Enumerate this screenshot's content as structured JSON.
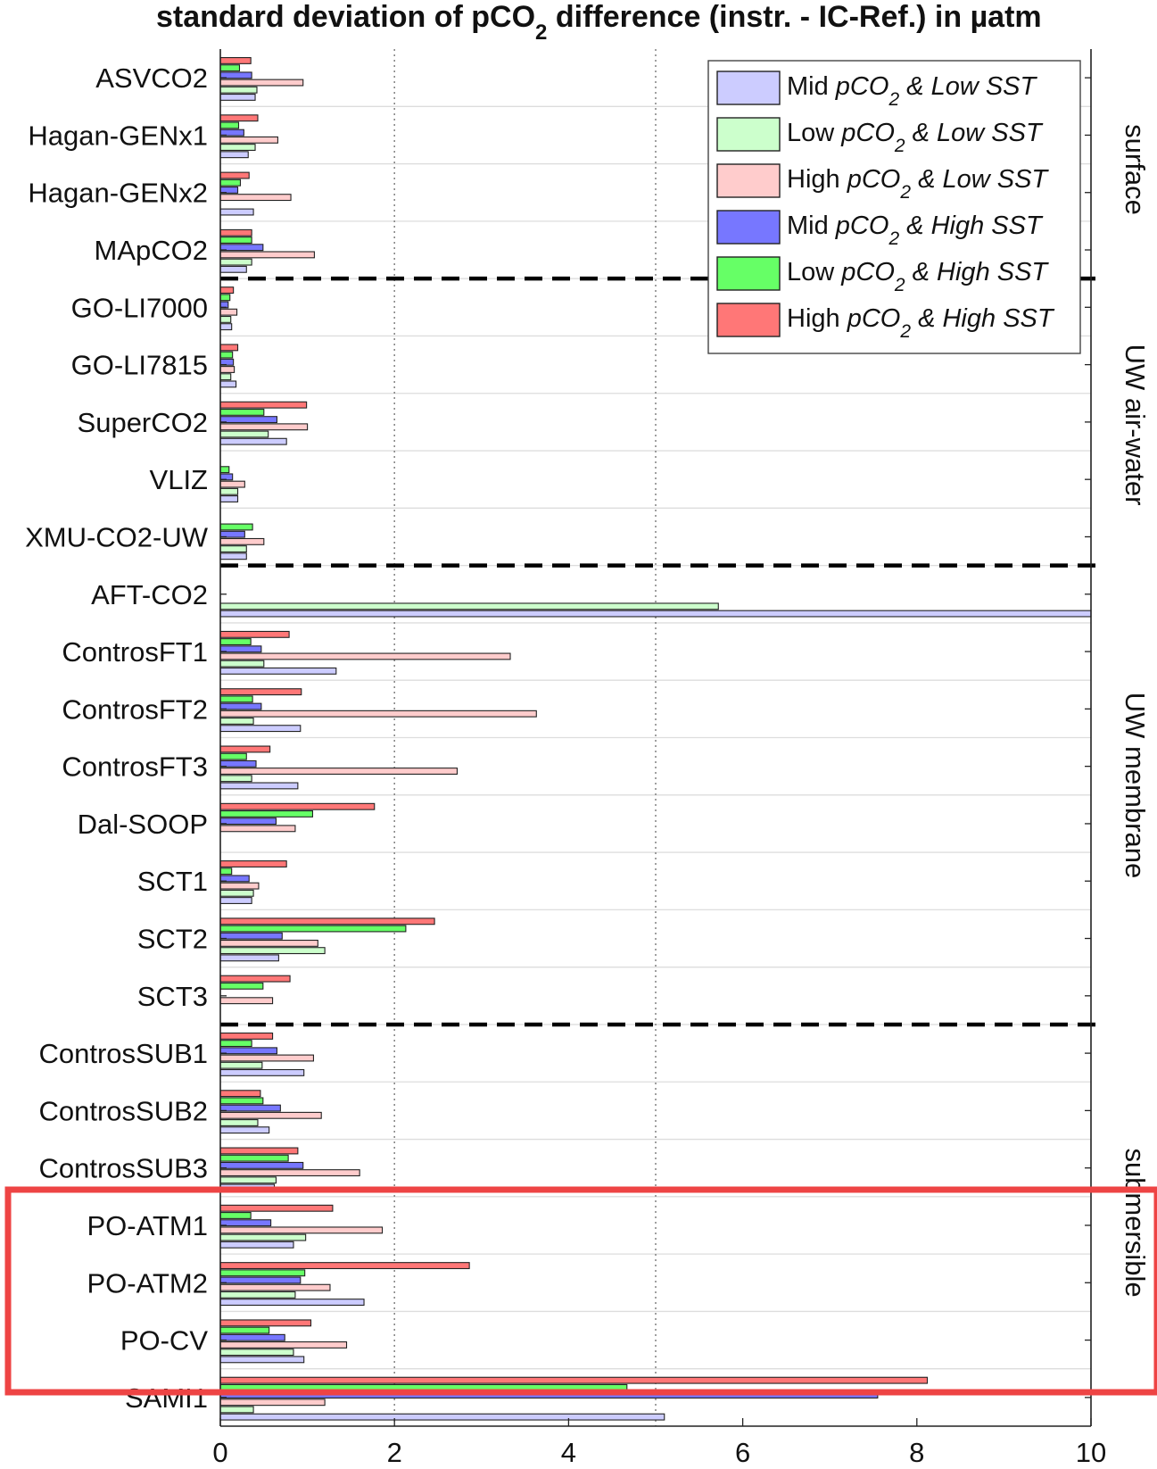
{
  "chart_data": {
    "type": "bar",
    "orientation": "horizontal",
    "title": "standard deviation of pCO₂ difference (instr. - IC-Ref.) in µatm",
    "title_parts": {
      "pre": "standard deviation of pCO",
      "sub": "2",
      "post": " difference (instr. - IC-Ref.) in µatm"
    },
    "xlim": [
      0,
      10
    ],
    "xticks": [
      0,
      2,
      4,
      6,
      8,
      10
    ],
    "dotted_gridlines": [
      2,
      5
    ],
    "categories": [
      "ASVCO2",
      "Hagan-GENx1",
      "Hagan-GENx2",
      "MApCO2",
      "GO-LI7000",
      "GO-LI7815",
      "SuperCO2",
      "VLIZ",
      "XMU-CO2-UW",
      "AFT-CO2",
      "ControsFT1",
      "ControsFT2",
      "ControsFT3",
      "Dal-SOOP",
      "SCT1",
      "SCT2",
      "SCT3",
      "ControsSUB1",
      "ControsSUB2",
      "ControsSUB3",
      "PO-ATM1",
      "PO-ATM2",
      "PO-CV",
      "SAMI1"
    ],
    "group_separators_after": [
      "MApCO2",
      "XMU-CO2-UW",
      "SCT3"
    ],
    "groups": [
      "surface",
      "UW air-water",
      "UW membrane",
      "submersible"
    ],
    "legend_location": "top-right",
    "series": [
      {
        "name": "Mid pCO2 & Low SST",
        "label_parts": [
          "Mid ",
          "pCO",
          "2",
          " & Low SST"
        ],
        "color": "#ccccff",
        "values": [
          0.4,
          0.32,
          0.38,
          0.3,
          0.13,
          0.18,
          0.76,
          0.2,
          0.3,
          10.0,
          1.33,
          0.92,
          0.89,
          0.0,
          0.36,
          0.67,
          0.0,
          0.96,
          0.56,
          0.62,
          0.84,
          1.65,
          0.96,
          5.1
        ]
      },
      {
        "name": "Low pCO2 & Low SST",
        "label_parts": [
          "Low ",
          "pCO",
          "2",
          " & Low SST"
        ],
        "color": "#ccffcc",
        "values": [
          0.42,
          0.4,
          0.0,
          0.36,
          0.12,
          0.12,
          0.55,
          0.2,
          0.3,
          5.72,
          0.5,
          0.38,
          0.36,
          0.0,
          0.38,
          1.2,
          0.0,
          0.48,
          0.43,
          0.64,
          0.98,
          0.86,
          0.84,
          0.38
        ]
      },
      {
        "name": "High pCO2 & Low SST",
        "label_parts": [
          "High ",
          "pCO",
          "2",
          " & Low SST"
        ],
        "color": "#ffcccc",
        "values": [
          0.95,
          0.66,
          0.81,
          1.08,
          0.19,
          0.16,
          1.0,
          0.28,
          0.5,
          0.0,
          3.33,
          3.63,
          2.72,
          0.86,
          0.44,
          1.12,
          0.6,
          1.07,
          1.16,
          1.6,
          1.86,
          1.26,
          1.45,
          1.2
        ]
      },
      {
        "name": "Mid pCO2 & High SST",
        "label_parts": [
          "Mid ",
          "pCO",
          "2",
          " & High SST"
        ],
        "color": "#7777ff",
        "values": [
          0.36,
          0.27,
          0.2,
          0.49,
          0.09,
          0.15,
          0.65,
          0.14,
          0.28,
          0.0,
          0.47,
          0.47,
          0.41,
          0.64,
          0.33,
          0.71,
          0.0,
          0.65,
          0.69,
          0.95,
          0.58,
          0.92,
          0.74,
          7.55
        ]
      },
      {
        "name": "Low pCO2 & High SST",
        "label_parts": [
          "Low ",
          "pCO",
          "2",
          " & High SST"
        ],
        "color": "#66ff66",
        "values": [
          0.22,
          0.21,
          0.23,
          0.36,
          0.11,
          0.14,
          0.5,
          0.1,
          0.37,
          0.0,
          0.35,
          0.37,
          0.3,
          1.06,
          0.13,
          2.13,
          0.49,
          0.36,
          0.49,
          0.78,
          0.35,
          0.97,
          0.56,
          4.67
        ]
      },
      {
        "name": "High pCO2 & High SST",
        "label_parts": [
          "High ",
          "pCO",
          "2",
          " & High SST"
        ],
        "color": "#ff7777",
        "values": [
          0.35,
          0.43,
          0.33,
          0.36,
          0.15,
          0.2,
          0.99,
          0.0,
          0.0,
          0.0,
          0.79,
          0.93,
          0.57,
          1.77,
          0.76,
          2.46,
          0.8,
          0.6,
          0.46,
          0.89,
          1.29,
          2.86,
          1.04,
          8.12
        ]
      }
    ]
  },
  "highlight": {
    "label": "red highlight box",
    "color": "#ee4444"
  }
}
